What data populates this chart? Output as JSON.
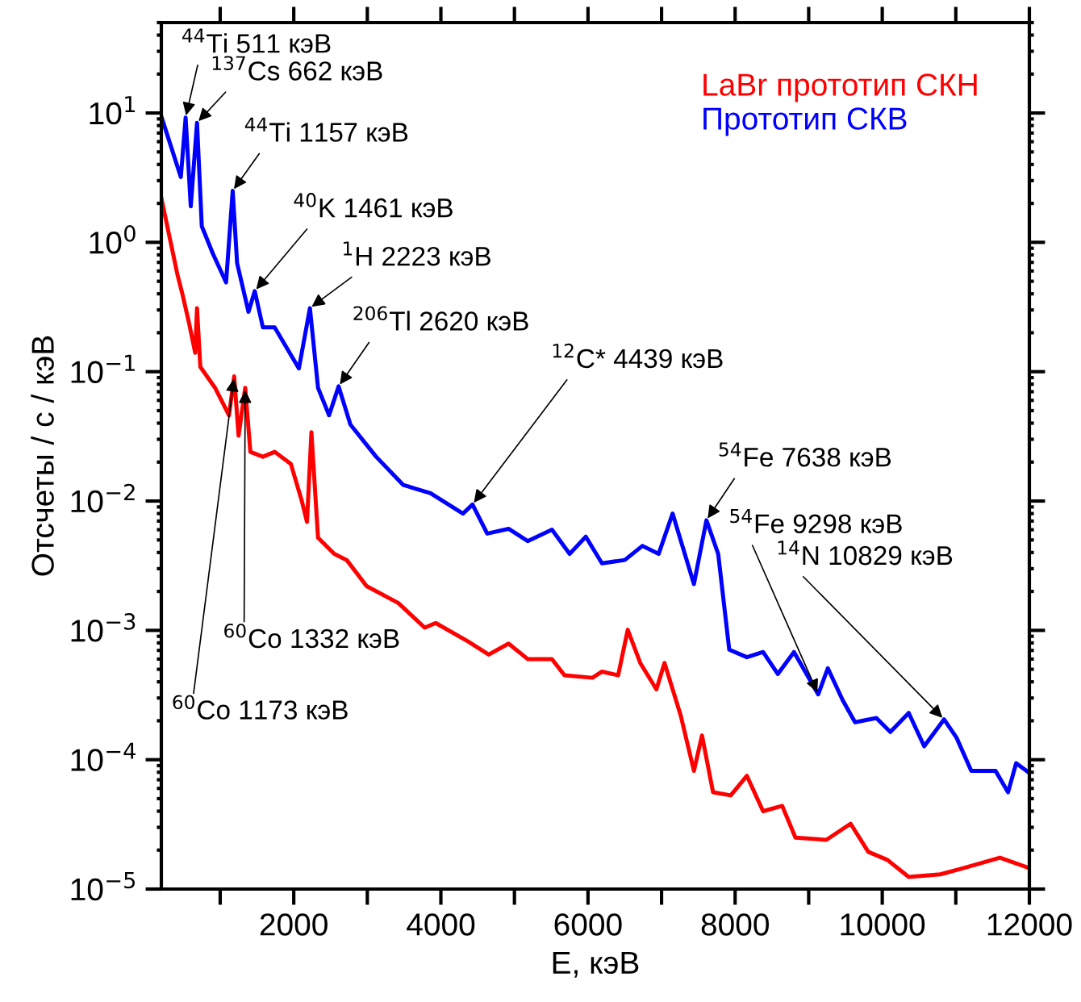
{
  "chart_data": {
    "type": "line",
    "xlabel": "E, кэВ",
    "ylabel": "Отсчеты / с / кэВ",
    "log": "y",
    "legend": "top right",
    "grid": false,
    "line_style": "solid",
    "marker": "none",
    "xlim": [
      200,
      12000
    ],
    "ylim": [
      1e-05,
      50
    ],
    "xticks": [
      {
        "value": 1000,
        "label": null
      },
      2000,
      {
        "value": 3000,
        "label": null
      },
      4000,
      {
        "value": 5000,
        "label": null
      },
      6000,
      {
        "value": 7000,
        "label": null
      },
      8000,
      {
        "value": 9000,
        "label": null
      },
      10000,
      {
        "value": 11000,
        "label": null
      },
      12000
    ],
    "yticks": [
      {
        "value": 1e-05,
        "label": "10$^{−5}$"
      },
      {
        "value": 0.0001,
        "label": "10$^{−4}$"
      },
      {
        "value": 0.001,
        "label": "10$^{−3}$"
      },
      {
        "value": 0.01,
        "label": "10$^{−2}$"
      },
      {
        "value": 0.1,
        "label": "10$^{−1}$"
      },
      {
        "value": 1,
        "label": "10$^{0}$"
      },
      {
        "value": 10,
        "label": "10$^{1}$"
      }
    ],
    "series": [
      {
        "name": "LaBr прототип СКН",
        "color": "#ff0000",
        "x": [
          200,
          420,
          490,
          575,
          660,
          685,
          730,
          930,
          1120,
          1190,
          1250,
          1340,
          1410,
          1580,
          1740,
          1960,
          2110,
          2180,
          2240,
          2330,
          2550,
          2720,
          2990,
          3420,
          3780,
          3930,
          4370,
          4650,
          4920,
          5180,
          5510,
          5680,
          6060,
          6190,
          6410,
          6540,
          6710,
          6930,
          7040,
          7260,
          7440,
          7550,
          7700,
          7940,
          8160,
          8380,
          8640,
          8820,
          9240,
          9570,
          9810,
          10070,
          10360,
          10790,
          11100,
          11600,
          12000
        ],
        "values": [
          2.2,
          0.56,
          0.39,
          0.24,
          0.14,
          0.31,
          0.109,
          0.075,
          0.046,
          0.092,
          0.032,
          0.075,
          0.024,
          0.022,
          0.024,
          0.0194,
          0.01,
          0.0069,
          0.034,
          0.0052,
          0.0039,
          0.0035,
          0.0022,
          0.00163,
          0.00105,
          0.00114,
          0.00082,
          0.00065,
          0.00079,
          0.0006,
          0.0006,
          0.00045,
          0.00043,
          0.00048,
          0.00045,
          0.00101,
          0.00056,
          0.00035,
          0.00056,
          0.00022,
          8.2e-05,
          0.000154,
          5.6e-05,
          5.3e-05,
          7.5e-05,
          4e-05,
          4.4e-05,
          2.5e-05,
          2.4e-05,
          3.2e-05,
          1.94e-05,
          1.68e-05,
          1.24e-05,
          1.3e-05,
          1.45e-05,
          1.75e-05,
          1.45e-05
        ]
      },
      {
        "name": "Прототип СКВ",
        "color": "#0000ff",
        "x": [
          200,
          465,
          530,
          600,
          685,
          750,
          900,
          1080,
          1170,
          1230,
          1385,
          1470,
          1580,
          1740,
          2070,
          2220,
          2330,
          2480,
          2610,
          2770,
          3120,
          3490,
          3860,
          4300,
          4430,
          4630,
          4920,
          5180,
          5510,
          5750,
          5970,
          6190,
          6500,
          6740,
          6960,
          7150,
          7440,
          7610,
          7770,
          7920,
          8160,
          8380,
          8580,
          8800,
          9130,
          9260,
          9460,
          9630,
          9920,
          10110,
          10360,
          10570,
          10840,
          11010,
          11210,
          11540,
          11710,
          11820,
          12000
        ],
        "values": [
          9.4,
          3.2,
          9.2,
          1.9,
          8.4,
          1.33,
          0.82,
          0.49,
          2.5,
          0.69,
          0.29,
          0.42,
          0.22,
          0.22,
          0.106,
          0.31,
          0.075,
          0.046,
          0.077,
          0.039,
          0.022,
          0.0133,
          0.0115,
          0.008,
          0.0094,
          0.0056,
          0.0061,
          0.0049,
          0.006,
          0.0039,
          0.0053,
          0.0033,
          0.0035,
          0.0045,
          0.0039,
          0.008,
          0.00228,
          0.0071,
          0.0039,
          0.00071,
          0.00062,
          0.00068,
          0.00046,
          0.00068,
          0.00032,
          0.00051,
          0.00029,
          0.000195,
          0.00021,
          0.000164,
          0.00023,
          0.000127,
          0.000205,
          0.000148,
          8.2e-05,
          8.2e-05,
          5.6e-05,
          9.4e-05,
          7.9e-05
        ]
      }
    ],
    "annotations": [
      {
        "text": "$^{44}$Ti 511 кэВ",
        "x": 530,
        "y": 9.2
      },
      {
        "text": "$^{137}$Cs 662 кэВ",
        "x": 685,
        "y": 8.4
      },
      {
        "text": "$^{44}$Ti 1157 кэВ",
        "x": 1170,
        "y": 2.5
      },
      {
        "text": "$^{40}$K 1461 кэВ",
        "x": 1470,
        "y": 0.42
      },
      {
        "text": "$^{1}$H 2223 кэВ",
        "x": 2220,
        "y": 0.31
      },
      {
        "text": "$^{206}$Tl 2620 кэВ",
        "x": 2610,
        "y": 0.077
      },
      {
        "text": "$^{12}$C* 4439 кэВ",
        "x": 4430,
        "y": 0.0094
      },
      {
        "text": "$^{54}$Fe 7638 кэВ",
        "x": 7610,
        "y": 0.0071
      },
      {
        "text": "$^{54}$Fe 9298 кэВ",
        "x": 9130,
        "y": 0.00032
      },
      {
        "text": "$^{14}$N 10829 кэВ",
        "x": 10840,
        "y": 0.000205
      },
      {
        "text": "$^{60}$Co 1332 кэВ",
        "x": 1340,
        "y": 0.075
      },
      {
        "text": "$^{60}$Co 1173 кэВ",
        "x": 1190,
        "y": 0.092
      }
    ]
  }
}
